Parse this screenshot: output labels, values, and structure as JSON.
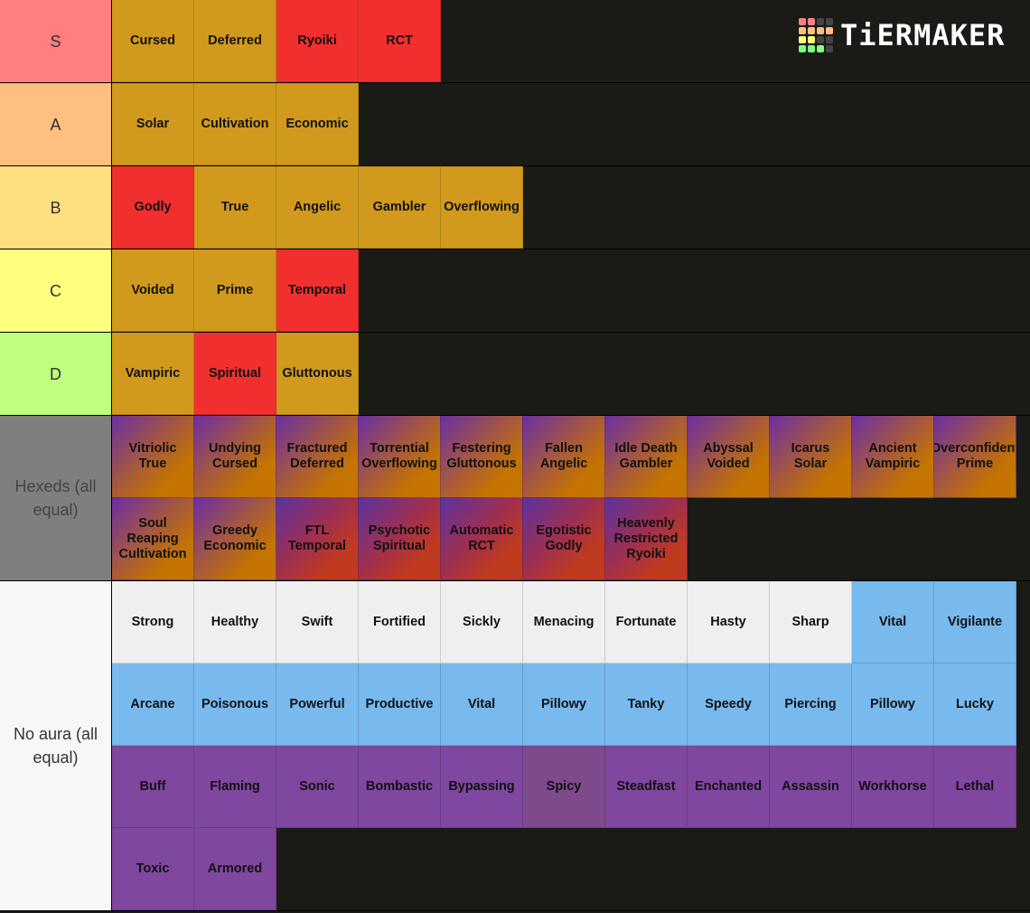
{
  "logo": {
    "text": "TiERMAKER",
    "grid_colors": [
      "#ff7f7f",
      "#ff7f7f",
      "#444",
      "#444",
      "#ffbf7f",
      "#ffbf7f",
      "#ffbf7f",
      "#ffbf7f",
      "#ffff7f",
      "#ffff7f",
      "#444",
      "#444",
      "#7fff7f",
      "#7fff7f",
      "#7fff7f",
      "#444"
    ]
  },
  "colors": {
    "background": "#1a1a17",
    "gold": "#d19a1c",
    "red": "#f22f2f",
    "white": "#efefef",
    "blue": "#78b9ee",
    "purple": "#7f479f"
  },
  "tiers": [
    {
      "label": "S",
      "color": "#ff7f7f",
      "items": [
        {
          "text": "Cursed",
          "style": "gold"
        },
        {
          "text": "Deferred",
          "style": "gold"
        },
        {
          "text": "Ryoiki",
          "style": "red"
        },
        {
          "text": "RCT",
          "style": "red"
        }
      ]
    },
    {
      "label": "A",
      "color": "#ffbf7f",
      "items": [
        {
          "text": "Solar",
          "style": "gold"
        },
        {
          "text": "Cultivation",
          "style": "gold"
        },
        {
          "text": "Economic",
          "style": "gold"
        }
      ]
    },
    {
      "label": "B",
      "color": "#ffdf7f",
      "items": [
        {
          "text": "Godly",
          "style": "red"
        },
        {
          "text": "True",
          "style": "gold"
        },
        {
          "text": "Angelic",
          "style": "gold"
        },
        {
          "text": "Gambler",
          "style": "gold"
        },
        {
          "text": "Overflowing",
          "style": "gold"
        }
      ]
    },
    {
      "label": "C",
      "color": "#ffff7f",
      "items": [
        {
          "text": "Voided",
          "style": "gold"
        },
        {
          "text": "Prime",
          "style": "gold"
        },
        {
          "text": "Temporal",
          "style": "red"
        }
      ]
    },
    {
      "label": "D",
      "color": "#bfff7f",
      "items": [
        {
          "text": "Vampiric",
          "style": "gold"
        },
        {
          "text": "Spiritual",
          "style": "red"
        },
        {
          "text": "Gluttonous",
          "style": "gold"
        }
      ]
    },
    {
      "label": "Hexeds (all equal)",
      "color": "#7f7f7f",
      "items": [
        {
          "text": "Vitriolic\nTrue",
          "style": "hex-orange"
        },
        {
          "text": "Undying\nCursed",
          "style": "hex-orange"
        },
        {
          "text": "Fractured\nDeferred",
          "style": "hex-orange"
        },
        {
          "text": "Torrential\nOverflowing",
          "style": "hex-orange"
        },
        {
          "text": "Festering\nGluttonous",
          "style": "hex-orange"
        },
        {
          "text": "Fallen\nAngelic",
          "style": "hex-orange"
        },
        {
          "text": "Idle Death\nGambler",
          "style": "hex-orange"
        },
        {
          "text": "Abyssal\nVoided",
          "style": "hex-orange"
        },
        {
          "text": "Icarus\nSolar",
          "style": "hex-orange"
        },
        {
          "text": "Ancient\nVampiric",
          "style": "hex-orange"
        },
        {
          "text": "Overconfident\nPrime",
          "style": "hex-orange"
        },
        {
          "text": "Soul\nReaping\nCultivation",
          "style": "hex-orange"
        },
        {
          "text": "Greedy\nEconomic",
          "style": "hex-orange"
        },
        {
          "text": "FTL\nTemporal",
          "style": "hex-red"
        },
        {
          "text": "Psychotic\nSpiritual",
          "style": "hex-red"
        },
        {
          "text": "Automatic\nRCT",
          "style": "hex-red"
        },
        {
          "text": "Egotistic\nGodly",
          "style": "hex-red"
        },
        {
          "text": "Heavenly\nRestricted\nRyoiki",
          "style": "hex-red"
        }
      ]
    },
    {
      "label": "No aura (all equal)",
      "color": "#f7f7f7",
      "items": [
        {
          "text": "Strong",
          "style": "white"
        },
        {
          "text": "Healthy",
          "style": "white"
        },
        {
          "text": "Swift",
          "style": "white"
        },
        {
          "text": "Fortified",
          "style": "white"
        },
        {
          "text": "Sickly",
          "style": "white"
        },
        {
          "text": "Menacing",
          "style": "white"
        },
        {
          "text": "Fortunate",
          "style": "white"
        },
        {
          "text": "Hasty",
          "style": "white"
        },
        {
          "text": "Sharp",
          "style": "white"
        },
        {
          "text": "Vital",
          "style": "blue"
        },
        {
          "text": "Vigilante",
          "style": "blue"
        },
        {
          "text": "Arcane",
          "style": "blue"
        },
        {
          "text": "Poisonous",
          "style": "blue"
        },
        {
          "text": "Powerful",
          "style": "blue"
        },
        {
          "text": "Productive",
          "style": "blue"
        },
        {
          "text": "Vital",
          "style": "blue"
        },
        {
          "text": "Pillowy",
          "style": "blue"
        },
        {
          "text": "Tanky",
          "style": "blue"
        },
        {
          "text": "Speedy",
          "style": "blue"
        },
        {
          "text": "Piercing",
          "style": "blue"
        },
        {
          "text": "Pillowy",
          "style": "blue"
        },
        {
          "text": "Lucky",
          "style": "blue"
        },
        {
          "text": "Buff",
          "style": "purple"
        },
        {
          "text": "Flaming",
          "style": "purple"
        },
        {
          "text": "Sonic",
          "style": "purple"
        },
        {
          "text": "Bombastic",
          "style": "purple"
        },
        {
          "text": "Bypassing",
          "style": "purple"
        },
        {
          "text": "Spicy",
          "style": "spicy"
        },
        {
          "text": "Steadfast",
          "style": "purple"
        },
        {
          "text": "Enchanted",
          "style": "purple"
        },
        {
          "text": "Assassin",
          "style": "purple"
        },
        {
          "text": "Workhorse",
          "style": "purple"
        },
        {
          "text": "Lethal",
          "style": "purple"
        },
        {
          "text": "Toxic",
          "style": "purple"
        },
        {
          "text": "Armored",
          "style": "purple"
        }
      ]
    }
  ]
}
